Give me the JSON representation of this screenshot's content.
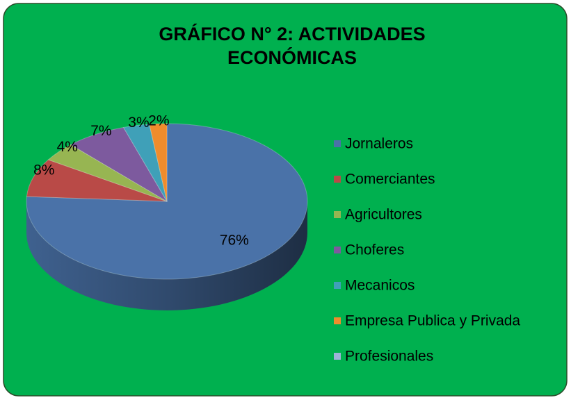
{
  "chart_data": {
    "type": "pie",
    "title": "GRÁFICO N° 2: ACTIVIDADES ECONÓMICAS",
    "categories": [
      "Jornaleros",
      "Comerciantes",
      "Agricultores",
      "Choferes",
      "Mecanicos",
      "Empresa Publica y Privada",
      "Profesionales"
    ],
    "values": [
      76,
      8,
      4,
      7,
      3,
      2,
      0
    ],
    "value_labels": [
      "76%",
      "8%",
      "4%",
      "7%",
      "3%",
      "2%",
      null
    ],
    "colors": [
      "#4a72a8",
      "#b94a47",
      "#97b552",
      "#7d5a9e",
      "#3fa0b8",
      "#f08c2c",
      "#9db3d8"
    ],
    "legend": "right"
  }
}
